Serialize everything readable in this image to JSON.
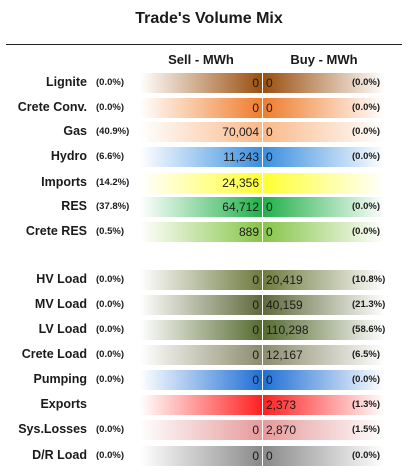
{
  "title": "Trade's Volume Mix",
  "headers": {
    "sell": "Sell - MWh",
    "buy": "Buy - MWh"
  },
  "rows": [
    {
      "label": "Lignite",
      "sell_pct": "(0.0%)",
      "sell_value": "0",
      "buy_value": "0",
      "buy_pct": "(0.0%)",
      "color_a": "#9a4f0e",
      "color_b": "#ffffff"
    },
    {
      "label": "Crete Conv.",
      "sell_pct": "(0.0%)",
      "sell_value": "0",
      "buy_value": "0",
      "buy_pct": "(0.0%)",
      "color_a": "#f07c2c",
      "color_b": "#ffffff"
    },
    {
      "label": "Gas",
      "sell_pct": "(40.9%)",
      "sell_value": "70,004",
      "buy_value": "0",
      "buy_pct": "(0.0%)",
      "color_a": "#f9b98a",
      "color_b": "#ffffff"
    },
    {
      "label": "Hydro",
      "sell_pct": "(6.6%)",
      "sell_value": "11,243",
      "buy_value": "0",
      "buy_pct": "(0.0%)",
      "color_a": "#3a8fe0",
      "color_b": "#ffffff"
    },
    {
      "label": "Imports",
      "sell_pct": "(14.2%)",
      "sell_value": "24,356",
      "buy_value": "",
      "buy_pct": "",
      "color_a": "#ffff33",
      "color_b": "#ffffff"
    },
    {
      "label": "RES",
      "sell_pct": "(37.8%)",
      "sell_value": "64,712",
      "buy_value": "0",
      "buy_pct": "(0.0%)",
      "color_a": "#22b04a",
      "color_b": "#ffffff"
    },
    {
      "label": "Crete RES",
      "sell_pct": "(0.5%)",
      "sell_value": "889",
      "buy_value": "0",
      "buy_pct": "(0.0%)",
      "color_a": "#86c548",
      "color_b": "#ffffff"
    },
    {
      "label": "HV Load",
      "sell_pct": "(0.0%)",
      "sell_value": "0",
      "buy_value": "20,419",
      "buy_pct": "(10.8%)",
      "color_a": "#6e7a3e",
      "color_b": "#ffffff"
    },
    {
      "label": "MV Load",
      "sell_pct": "(0.0%)",
      "sell_value": "0",
      "buy_value": "40,159",
      "buy_pct": "(21.3%)",
      "color_a": "#5f6a3a",
      "color_b": "#ffffff"
    },
    {
      "label": "LV Load",
      "sell_pct": "(0.0%)",
      "sell_value": "0",
      "buy_value": "110,298",
      "buy_pct": "(58.6%)",
      "color_a": "#556b2f",
      "color_b": "#ffffff"
    },
    {
      "label": "Crete Load",
      "sell_pct": "(0.0%)",
      "sell_value": "0",
      "buy_value": "12,167",
      "buy_pct": "(6.5%)",
      "color_a": "#8c8c6e",
      "color_b": "#ffffff"
    },
    {
      "label": "Pumping",
      "sell_pct": "(0.0%)",
      "sell_value": "0",
      "buy_value": "0",
      "buy_pct": "(0.0%)",
      "color_a": "#1f6fd6",
      "color_b": "#ffffff"
    },
    {
      "label": "Exports",
      "sell_pct": "",
      "sell_value": "",
      "buy_value": "2,373",
      "buy_pct": "(1.3%)",
      "color_a": "#ff2020",
      "color_b": "#ffffff"
    },
    {
      "label": "Sys.Losses",
      "sell_pct": "(0.0%)",
      "sell_value": "0",
      "buy_value": "2,870",
      "buy_pct": "(1.5%)",
      "color_a": "#e69a9a",
      "color_b": "#ffffff"
    },
    {
      "label": "D/R Load",
      "sell_pct": "(0.0%)",
      "sell_value": "0",
      "buy_value": "0",
      "buy_pct": "(0.0%)",
      "color_a": "#8a8a8a",
      "color_b": "#ffffff"
    }
  ]
}
